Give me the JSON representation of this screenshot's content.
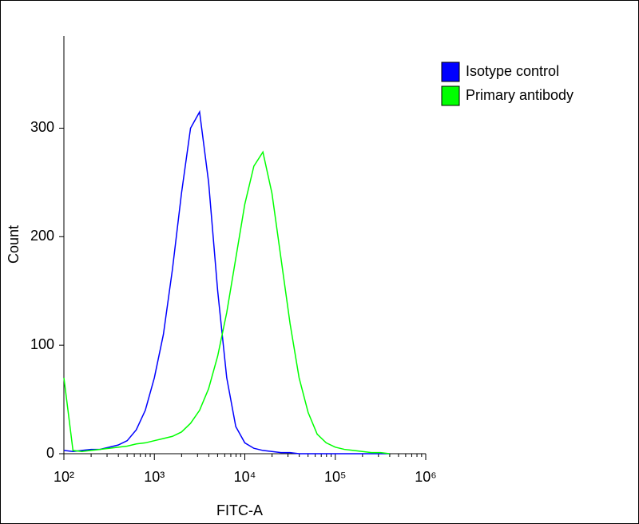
{
  "chart_data": {
    "type": "line",
    "xlabel": "FITC-A",
    "ylabel": "Count",
    "xscale": "log",
    "xlim": [
      100,
      1000000
    ],
    "ylim": [
      0,
      385
    ],
    "xticks": [
      {
        "value": 100,
        "label": "10²"
      },
      {
        "value": 1000,
        "label": "10³"
      },
      {
        "value": 10000,
        "label": "10⁴"
      },
      {
        "value": 100000,
        "label": "10⁵"
      },
      {
        "value": 1000000,
        "label": "10⁶"
      }
    ],
    "xminorticks": [
      200,
      300,
      400,
      500,
      600,
      700,
      800,
      900,
      2000,
      3000,
      4000,
      5000,
      6000,
      7000,
      8000,
      9000,
      20000,
      30000,
      40000,
      50000,
      60000,
      70000,
      80000,
      90000,
      200000,
      300000,
      400000,
      500000,
      600000,
      700000,
      800000,
      900000
    ],
    "yticks": [
      0,
      100,
      200,
      300
    ],
    "legend": "top-right",
    "x": [
      100,
      126,
      158,
      200,
      251,
      316,
      398,
      501,
      631,
      794,
      1000,
      1259,
      1585,
      1995,
      2512,
      3162,
      3981,
      5012,
      6310,
      7943,
      10000,
      12589,
      15849,
      19953,
      25119,
      31623,
      39811,
      50119,
      63096,
      79433,
      100000,
      125893,
      158489,
      199526,
      251189,
      316228,
      398107
    ],
    "series": [
      {
        "name": "Isotype control",
        "color": "#0000ff",
        "values": [
          3,
          2,
          3,
          4,
          4,
          6,
          8,
          12,
          22,
          40,
          70,
          110,
          170,
          240,
          300,
          315,
          250,
          150,
          70,
          25,
          10,
          5,
          3,
          2,
          1,
          1,
          0,
          0,
          0,
          0,
          0,
          0,
          0,
          0,
          0,
          0,
          0
        ]
      },
      {
        "name": "Primary antibody",
        "color": "#00ff00",
        "values": [
          70,
          3,
          2,
          3,
          4,
          5,
          6,
          7,
          9,
          10,
          12,
          14,
          16,
          20,
          28,
          40,
          60,
          90,
          130,
          180,
          230,
          265,
          278,
          240,
          180,
          120,
          70,
          38,
          18,
          10,
          6,
          4,
          3,
          2,
          1,
          1,
          0
        ]
      }
    ]
  }
}
